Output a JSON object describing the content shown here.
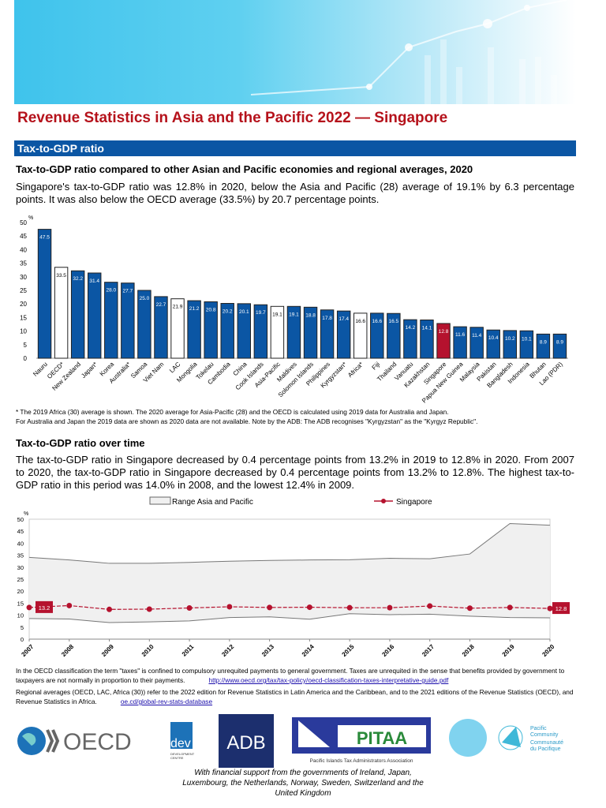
{
  "header": {
    "title": "Revenue Statistics in Asia and the Pacific 2022  —  Singapore",
    "section": "Tax-to-GDP ratio"
  },
  "section1": {
    "heading": "Tax-to-GDP ratio compared to other Asian and Pacific economies and regional averages, 2020",
    "text": "Singapore's tax-to-GDP ratio was 12.8% in 2020, below the Asia and Pacific (28) average of 19.1% by 6.3 percentage points. It was also below the OECD average (33.5%) by 20.7 percentage points.",
    "notes": [
      "* The 2019 Africa (30) average is shown. The 2020 average for Asia-Pacific (28) and the OECD is calculated using 2019 data for Australia and Japan.",
      "For Australia and Japan the 2019 data are shown as 2020 data are not available. Note by the ADB: The ADB recognises \"Kyrgyzstan\" as the \"Kyrgyz Republic\"."
    ]
  },
  "section2": {
    "heading": "Tax-to-GDP ratio over time",
    "text": "The tax-to-GDP ratio in Singapore decreased by 0.4 percentage points from 13.2% in 2019 to 12.8% in 2020. From 2007 to 2020, the tax-to-GDP ratio in Singapore decreased by 0.4 percentage points from 13.2% to 12.8%. The highest tax-to-GDP ratio in this period was 14.0% in 2008, and the lowest 12.4% in 2009."
  },
  "chart_data": [
    {
      "type": "bar",
      "ylabel": "%",
      "ylim": [
        0,
        50
      ],
      "yticks": [
        0,
        5,
        10,
        15,
        20,
        25,
        30,
        35,
        40,
        45,
        50
      ],
      "grid": false,
      "categories": [
        "Nauru",
        "OECD*",
        "New Zealand",
        "Japan*",
        "Korea",
        "Australia*",
        "Samoa",
        "Viet Nam",
        "LAC",
        "Mongolia",
        "Tokelau",
        "Cambodia",
        "China",
        "Cook Islands",
        "Asia-Pacific",
        "Maldives",
        "Solomon Islands",
        "Philippines",
        "Kyrgyzstan*",
        "Africa*",
        "Fiji",
        "Thailand",
        "Vanuatu",
        "Kazakhstan",
        "Singapore",
        "Papua New Guinea",
        "Malaysia",
        "Pakistan",
        "Bangladesh",
        "Indonesia",
        "Bhutan",
        "Lao (PDR)"
      ],
      "values": [
        47.5,
        33.5,
        32.2,
        31.4,
        28.0,
        27.7,
        25.0,
        22.7,
        21.9,
        21.2,
        20.8,
        20.2,
        20.1,
        19.7,
        19.1,
        19.1,
        18.8,
        17.8,
        17.4,
        16.6,
        16.6,
        16.5,
        14.2,
        14.1,
        12.8,
        11.6,
        11.4,
        10.4,
        10.2,
        10.1,
        8.9,
        8.9
      ],
      "averages": [
        "OECD*",
        "LAC",
        "Asia-Pacific",
        "Africa*"
      ],
      "highlight": "Singapore",
      "colors": {
        "country": "#0b56a4",
        "average": "#ffffff",
        "highlight": "#b5122e"
      }
    },
    {
      "type": "line",
      "ylabel": "%",
      "ylim": [
        0,
        50
      ],
      "yticks": [
        0,
        5,
        10,
        15,
        20,
        25,
        30,
        35,
        40,
        45,
        50
      ],
      "x": [
        2007,
        2008,
        2009,
        2010,
        2011,
        2012,
        2013,
        2014,
        2015,
        2016,
        2017,
        2018,
        2019,
        2020
      ],
      "series": [
        {
          "name": "Singapore",
          "values": [
            13.2,
            14.0,
            12.4,
            12.5,
            13.0,
            13.5,
            13.2,
            13.3,
            13.1,
            13.1,
            13.8,
            12.9,
            13.2,
            12.8
          ],
          "color": "#b5122e"
        }
      ],
      "range": {
        "name": "Range Asia and Pacific",
        "max": [
          34.1,
          33.0,
          31.6,
          31.6,
          32.0,
          32.5,
          32.8,
          33.0,
          33.1,
          33.7,
          33.5,
          35.5,
          48.2,
          47.5
        ],
        "min": [
          8.6,
          8.4,
          6.9,
          7.2,
          7.6,
          9.0,
          9.3,
          8.3,
          10.6,
          10.2,
          10.4,
          9.6,
          9.0,
          8.9
        ],
        "color": "#f0f0f0"
      },
      "end_labels": [
        "13.2",
        "12.8"
      ]
    }
  ],
  "footer": {
    "line1": "In the OECD classification the term \"taxes\" is confined to compulsory unrequited payments to general government. Taxes are unrequited in the sense that benefits provided by government to taxpayers are not normally in proportion to their payments.",
    "link1": "http://www.oecd.org/tax/tax-policy/oecd-classification-taxes-interpretative-guide.pdf",
    "line2": "Regional averages (OECD, LAC, Africa (30)) refer to the 2022 edition for Revenue Statistics in Latin America and the Caribbean, and to the 2021 editions of the Revenue Statistics (OECD), and Revenue Statistics in Africa.",
    "link2": "oe.cd/global-rev-stats-database",
    "logos": {
      "oecd": "OECD",
      "dev": "dev",
      "dev_sub": "DEVELOPMENT CENTRE",
      "adb": "ADB",
      "pitaa": "PITAA",
      "pitaa_sub": "Pacific Islands Tax Administrators Association",
      "spc": "Pacific Community",
      "spc_fr": "Communauté du Pacifique"
    },
    "support": "With financial support from the governments of Ireland, Japan, Luxembourg, the Netherlands, Norway, Sweden, Switzerland and the United Kingdom"
  }
}
